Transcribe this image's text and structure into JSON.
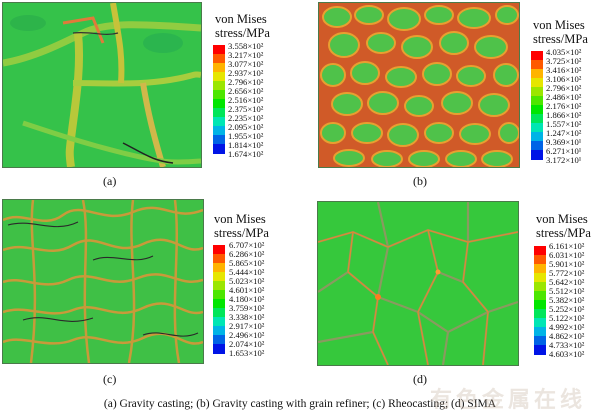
{
  "legend_title_line1": "von Mises",
  "legend_title_line2": "stress/MPa",
  "panels": [
    {
      "label": "(a)",
      "ticks": [
        "3.558×10²",
        "3.217×10²",
        "3.077×10²",
        "2.937×10²",
        "2.796×10²",
        "2.656×10²",
        "2.516×10²",
        "2.375×10²",
        "2.235×10²",
        "2.095×10²",
        "1.955×10²",
        "1.814×10²",
        "1.674×10²"
      ]
    },
    {
      "label": "(b)",
      "ticks": [
        "4.035×10²",
        "3.725×10²",
        "3.416×10²",
        "3.106×10²",
        "2.796×10²",
        "2.486×10²",
        "2.176×10²",
        "1.866×10²",
        "1.557×10²",
        "1.247×10²",
        "9.369×10¹",
        "6.271×10¹",
        "3.172×10¹"
      ]
    },
    {
      "label": "(c)",
      "ticks": [
        "6.707×10²",
        "6.286×10²",
        "5.865×10²",
        "5.444×10²",
        "5.023×10²",
        "4.601×10²",
        "4.180×10²",
        "3.759×10²",
        "3.338×10²",
        "2.917×10²",
        "2.496×10²",
        "2.074×10²",
        "1.653×10²"
      ]
    },
    {
      "label": "(d)",
      "ticks": [
        "6.161×10²",
        "6.031×10²",
        "5.901×10²",
        "5.772×10²",
        "5.642×10²",
        "5.512×10²",
        "5.382×10²",
        "5.252×10²",
        "5.122×10²",
        "4.992×10²",
        "4.862×10²",
        "4.733×10²",
        "4.603×10²"
      ]
    }
  ],
  "colorscale": [
    "#ff0000",
    "#ff5a00",
    "#ffb400",
    "#e6e600",
    "#9be600",
    "#4de600",
    "#00e600",
    "#00e65a",
    "#00e6b4",
    "#00b4e6",
    "#0064e6",
    "#0014e6"
  ],
  "caption": "(a) Gravity casting; (b) Gravity casting with  grain refiner; (c) Rheocasting; (d) SIMA",
  "watermark": "有色金属在线"
}
